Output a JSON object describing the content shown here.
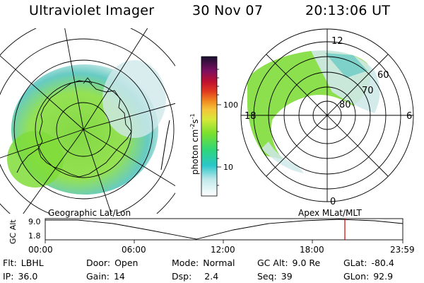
{
  "header": {
    "title": "Ultraviolet Imager",
    "date": "30 Nov 07",
    "time": "20:13:06 UT"
  },
  "colorbar": {
    "label": "photon cm",
    "label_exp1": "-2",
    "label_s": "s",
    "label_exp2": "-1",
    "ticks": [
      "100",
      "10"
    ]
  },
  "polar": {
    "mlt_labels": {
      "top": "12",
      "left": "18",
      "right": "6",
      "bottom": "0"
    },
    "lat_labels": [
      "60",
      "70",
      "80"
    ]
  },
  "timeline": {
    "left_title": "Geographic Lat/Lon",
    "right_title": "Apex MLat/MLT",
    "axis_label": "GC Alt",
    "yticks": [
      "9.0",
      "1.8"
    ],
    "xticks": [
      "00:00",
      "06:00",
      "12:00",
      "18:00",
      "23:59"
    ],
    "marker_color": "#d00000"
  },
  "info": {
    "flt_label": "Flt:",
    "flt": "LBHL",
    "ip_label": "IP:",
    "ip": "36.0",
    "door_label": "Door:",
    "door": "Open",
    "gain_label": "Gain:",
    "gain": "14",
    "mode_label": "Mode:",
    "mode": "Normal",
    "dsp_label": "Dsp:",
    "dsp": "2.4",
    "gcalt_label": "GC Alt:",
    "gcalt": "9.0 Re",
    "seq_label": "Seq:",
    "seq": "39",
    "glat_label": "GLat:",
    "glat": "-80.4",
    "glon_label": "GLon:",
    "glon": "92.9"
  }
}
